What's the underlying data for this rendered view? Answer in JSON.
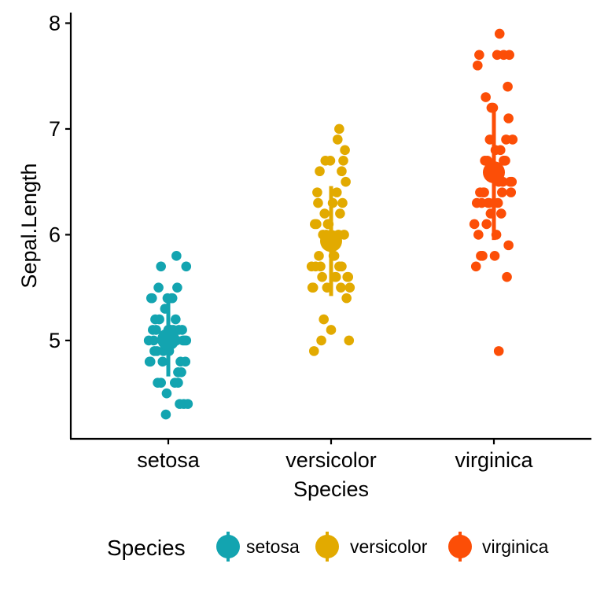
{
  "chart_data": {
    "type": "scatter",
    "xlabel": "Species",
    "ylabel": "Sepal.Length",
    "categories": [
      "setosa",
      "versicolor",
      "virginica"
    ],
    "y_ticks": [
      "5",
      "6",
      "7",
      "8"
    ],
    "ylim": [
      4.07,
      8.1
    ],
    "grid": false,
    "legend": {
      "title": "Species",
      "position": "bottom"
    },
    "series": [
      {
        "name": "setosa",
        "color": "#13A4B0",
        "mean": 5.01,
        "sd": 0.35,
        "points": [
          {
            "jitter": 0.0,
            "y": 5.1
          },
          {
            "jitter": -0.17,
            "y": 4.9
          },
          {
            "jitter": 0.12,
            "y": 4.7
          },
          {
            "jitter": -0.09,
            "y": 4.6
          },
          {
            "jitter": 0.22,
            "y": 5.0
          },
          {
            "jitter": -0.2,
            "y": 5.4
          },
          {
            "jitter": 0.08,
            "y": 4.6
          },
          {
            "jitter": -0.05,
            "y": 5.0
          },
          {
            "jitter": 0.19,
            "y": 4.4
          },
          {
            "jitter": -0.14,
            "y": 4.9
          },
          {
            "jitter": 0.05,
            "y": 5.4
          },
          {
            "jitter": -0.22,
            "y": 4.8
          },
          {
            "jitter": 0.15,
            "y": 4.8
          },
          {
            "jitter": -0.03,
            "y": 4.3
          },
          {
            "jitter": 0.1,
            "y": 5.8
          },
          {
            "jitter": 0.22,
            "y": 5.7
          },
          {
            "jitter": -0.21,
            "y": 5.4
          },
          {
            "jitter": 0.02,
            "y": 5.1
          },
          {
            "jitter": -0.09,
            "y": 5.7
          },
          {
            "jitter": 0.13,
            "y": 5.1
          },
          {
            "jitter": -0.01,
            "y": 5.4
          },
          {
            "jitter": 0.17,
            "y": 5.1
          },
          {
            "jitter": -0.13,
            "y": 4.6
          },
          {
            "jitter": 0.06,
            "y": 5.1
          },
          {
            "jitter": -0.23,
            "y": 4.8
          },
          {
            "jitter": 0.2,
            "y": 5.0
          },
          {
            "jitter": -0.18,
            "y": 5.0
          },
          {
            "jitter": 0.09,
            "y": 5.2
          },
          {
            "jitter": -0.11,
            "y": 5.2
          },
          {
            "jitter": 0.16,
            "y": 4.7
          },
          {
            "jitter": -0.07,
            "y": 4.8
          },
          {
            "jitter": 0.04,
            "y": 5.4
          },
          {
            "jitter": -0.16,
            "y": 5.2
          },
          {
            "jitter": 0.11,
            "y": 5.5
          },
          {
            "jitter": -0.06,
            "y": 4.9
          },
          {
            "jitter": 0.18,
            "y": 5.0
          },
          {
            "jitter": -0.12,
            "y": 5.5
          },
          {
            "jitter": 0.01,
            "y": 4.9
          },
          {
            "jitter": 0.24,
            "y": 4.4
          },
          {
            "jitter": -0.19,
            "y": 5.1
          },
          {
            "jitter": 0.07,
            "y": 5.0
          },
          {
            "jitter": -0.02,
            "y": 4.5
          },
          {
            "jitter": 0.14,
            "y": 4.4
          },
          {
            "jitter": -0.24,
            "y": 5.0
          },
          {
            "jitter": 0.03,
            "y": 5.1
          },
          {
            "jitter": 0.21,
            "y": 4.8
          },
          {
            "jitter": -0.15,
            "y": 5.1
          },
          {
            "jitter": 0.12,
            "y": 4.6
          },
          {
            "jitter": -0.04,
            "y": 5.3
          },
          {
            "jitter": 0.1,
            "y": 5.0
          }
        ]
      },
      {
        "name": "versicolor",
        "color": "#E2AA00",
        "mean": 5.94,
        "sd": 0.52,
        "points": [
          {
            "jitter": 0.1,
            "y": 7.0
          },
          {
            "jitter": -0.17,
            "y": 6.4
          },
          {
            "jitter": 0.08,
            "y": 6.9
          },
          {
            "jitter": -0.05,
            "y": 5.5
          },
          {
            "jitter": 0.18,
            "y": 6.5
          },
          {
            "jitter": -0.13,
            "y": 5.7
          },
          {
            "jitter": 0.02,
            "y": 6.3
          },
          {
            "jitter": -0.21,
            "y": 4.9
          },
          {
            "jitter": 0.13,
            "y": 6.6
          },
          {
            "jitter": -0.09,
            "y": 5.2
          },
          {
            "jitter": 0.22,
            "y": 5.0
          },
          {
            "jitter": -0.02,
            "y": 5.9
          },
          {
            "jitter": 0.16,
            "y": 6.0
          },
          {
            "jitter": -0.18,
            "y": 6.1
          },
          {
            "jitter": 0.05,
            "y": 5.6
          },
          {
            "jitter": -0.07,
            "y": 6.7
          },
          {
            "jitter": 0.2,
            "y": 5.6
          },
          {
            "jitter": -0.15,
            "y": 5.8
          },
          {
            "jitter": 0.11,
            "y": 6.2
          },
          {
            "jitter": -0.11,
            "y": 5.6
          },
          {
            "jitter": 0.01,
            "y": 5.9
          },
          {
            "jitter": -0.2,
            "y": 6.1
          },
          {
            "jitter": 0.14,
            "y": 6.3
          },
          {
            "jitter": -0.04,
            "y": 6.1
          },
          {
            "jitter": 0.07,
            "y": 6.4
          },
          {
            "jitter": -0.14,
            "y": 6.6
          },
          {
            "jitter": 0.17,
            "y": 6.8
          },
          {
            "jitter": -0.01,
            "y": 6.7
          },
          {
            "jitter": 0.09,
            "y": 6.0
          },
          {
            "jitter": -0.24,
            "y": 5.7
          },
          {
            "jitter": 0.12,
            "y": 5.5
          },
          {
            "jitter": -0.23,
            "y": 5.5
          },
          {
            "jitter": 0.04,
            "y": 5.8
          },
          {
            "jitter": -0.1,
            "y": 6.0
          },
          {
            "jitter": 0.19,
            "y": 5.4
          },
          {
            "jitter": -0.06,
            "y": 6.0
          },
          {
            "jitter": 0.15,
            "y": 6.7
          },
          {
            "jitter": -0.16,
            "y": 6.3
          },
          {
            "jitter": 0.06,
            "y": 5.6
          },
          {
            "jitter": -0.22,
            "y": 5.5
          },
          {
            "jitter": 0.23,
            "y": 5.5
          },
          {
            "jitter": -0.03,
            "y": 6.1
          },
          {
            "jitter": 0.03,
            "y": 5.8
          },
          {
            "jitter": -0.12,
            "y": 5.0
          },
          {
            "jitter": 0.21,
            "y": 5.6
          },
          {
            "jitter": -0.19,
            "y": 5.7
          },
          {
            "jitter": 0.1,
            "y": 5.7
          },
          {
            "jitter": -0.08,
            "y": 6.2
          },
          {
            "jitter": 0.0,
            "y": 5.1
          },
          {
            "jitter": 0.13,
            "y": 5.7
          }
        ]
      },
      {
        "name": "virginica",
        "color": "#FC4E07",
        "mean": 6.59,
        "sd": 0.64,
        "points": [
          {
            "jitter": 0.05,
            "y": 6.3
          },
          {
            "jitter": -0.14,
            "y": 5.8
          },
          {
            "jitter": 0.18,
            "y": 7.1
          },
          {
            "jitter": -0.07,
            "y": 6.3
          },
          {
            "jitter": 0.11,
            "y": 6.5
          },
          {
            "jitter": -0.2,
            "y": 7.6
          },
          {
            "jitter": 0.06,
            "y": 4.9
          },
          {
            "jitter": -0.1,
            "y": 7.3
          },
          {
            "jitter": 0.14,
            "y": 6.7
          },
          {
            "jitter": -0.03,
            "y": 7.2
          },
          {
            "jitter": 0.22,
            "y": 6.5
          },
          {
            "jitter": -0.17,
            "y": 6.4
          },
          {
            "jitter": 0.08,
            "y": 6.8
          },
          {
            "jitter": -0.22,
            "y": 5.7
          },
          {
            "jitter": 0.01,
            "y": 5.8
          },
          {
            "jitter": -0.12,
            "y": 6.4
          },
          {
            "jitter": 0.2,
            "y": 6.5
          },
          {
            "jitter": 0.12,
            "y": 7.7
          },
          {
            "jitter": -0.18,
            "y": 7.7
          },
          {
            "jitter": 0.03,
            "y": 6.0
          },
          {
            "jitter": -0.05,
            "y": 6.9
          },
          {
            "jitter": 0.16,
            "y": 5.6
          },
          {
            "jitter": 0.04,
            "y": 7.7
          },
          {
            "jitter": -0.15,
            "y": 6.3
          },
          {
            "jitter": 0.13,
            "y": 6.7
          },
          {
            "jitter": -0.01,
            "y": 7.2
          },
          {
            "jitter": 0.09,
            "y": 6.2
          },
          {
            "jitter": -0.09,
            "y": 6.1
          },
          {
            "jitter": 0.21,
            "y": 6.4
          },
          {
            "jitter": -0.02,
            "y": 7.2
          },
          {
            "jitter": 0.17,
            "y": 7.4
          },
          {
            "jitter": 0.07,
            "y": 7.9
          },
          {
            "jitter": -0.13,
            "y": 6.4
          },
          {
            "jitter": 0.0,
            "y": 6.3
          },
          {
            "jitter": -0.24,
            "y": 6.1
          },
          {
            "jitter": 0.19,
            "y": 7.7
          },
          {
            "jitter": -0.06,
            "y": 6.3
          },
          {
            "jitter": 0.1,
            "y": 6.4
          },
          {
            "jitter": -0.19,
            "y": 6.0
          },
          {
            "jitter": 0.15,
            "y": 6.9
          },
          {
            "jitter": -0.11,
            "y": 6.7
          },
          {
            "jitter": 0.23,
            "y": 6.9
          },
          {
            "jitter": -0.16,
            "y": 5.8
          },
          {
            "jitter": 0.02,
            "y": 6.8
          },
          {
            "jitter": -0.08,
            "y": 6.7
          },
          {
            "jitter": 0.12,
            "y": 6.7
          },
          {
            "jitter": -0.21,
            "y": 6.3
          },
          {
            "jitter": 0.06,
            "y": 6.5
          },
          {
            "jitter": -0.04,
            "y": 6.2
          },
          {
            "jitter": 0.18,
            "y": 5.9
          }
        ]
      }
    ]
  }
}
